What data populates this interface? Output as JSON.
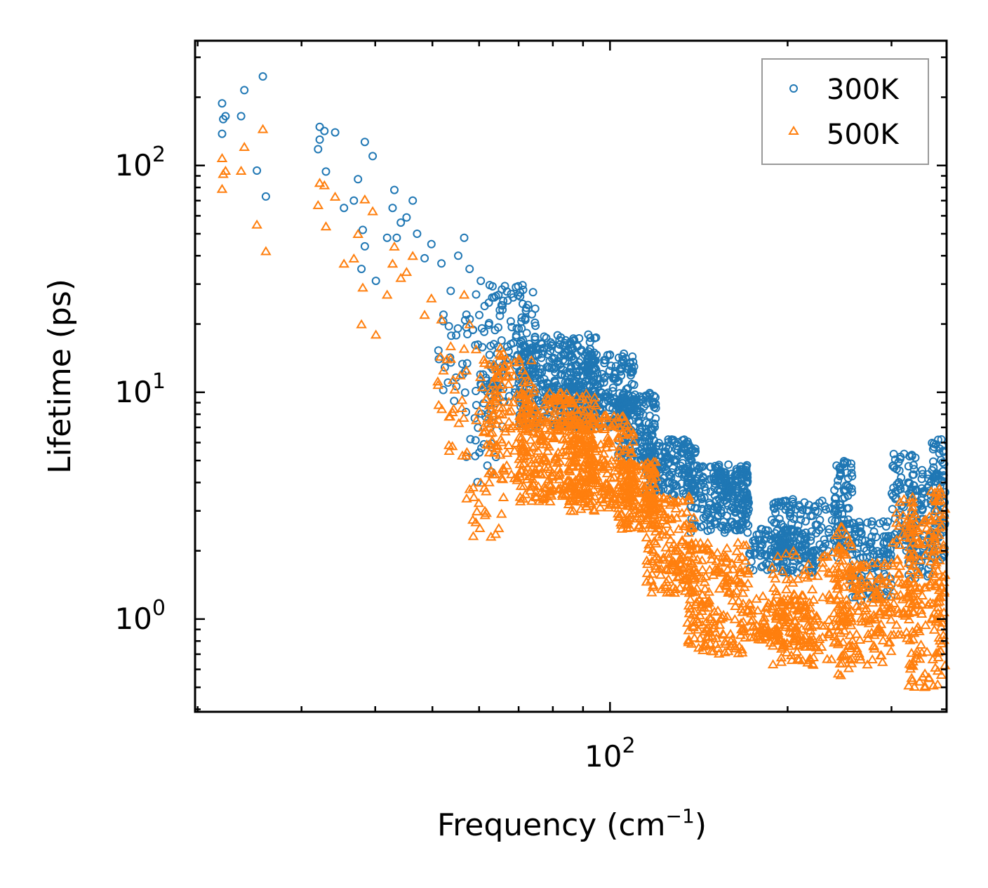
{
  "chart_data": {
    "type": "scatter",
    "xscale": "log",
    "yscale": "log",
    "xlabel": "Frequency (cm",
    "xlabel_sup": "−1",
    "xlabel_end": ")",
    "ylabel": "Lifetime (ps)",
    "xlim": [
      19.8,
      372
    ],
    "ylim": [
      0.39,
      355
    ],
    "x_ticks": [
      {
        "value": 100,
        "base": "10",
        "exp": "2"
      }
    ],
    "y_ticks": [
      {
        "value": 1,
        "base": "10",
        "exp": "0"
      },
      {
        "value": 10,
        "base": "10",
        "exp": "1"
      },
      {
        "value": 100,
        "base": "10",
        "exp": "2"
      }
    ],
    "legend_position": "top-right",
    "series": [
      {
        "name": "300K",
        "marker": "circle",
        "color": "#1f77b4",
        "points": [
          [
            22,
            188
          ],
          [
            22.1,
            160
          ],
          [
            22.3,
            165
          ],
          [
            22,
            138
          ],
          [
            23.7,
            165
          ],
          [
            24,
            215
          ],
          [
            25.2,
            95
          ],
          [
            25.8,
            247
          ],
          [
            26.1,
            73
          ],
          [
            32.2,
            148
          ],
          [
            32.8,
            142
          ],
          [
            32,
            118
          ],
          [
            32.2,
            130
          ],
          [
            33,
            94
          ],
          [
            34.2,
            140
          ],
          [
            35.4,
            65
          ],
          [
            36.8,
            70
          ],
          [
            37.4,
            87
          ],
          [
            38.4,
            127
          ],
          [
            39.6,
            110
          ],
          [
            38.1,
            52
          ],
          [
            38.4,
            44
          ],
          [
            37.9,
            35
          ],
          [
            40.1,
            31
          ],
          [
            41.9,
            48
          ],
          [
            42.8,
            65
          ],
          [
            43.1,
            78
          ],
          [
            43.5,
            48
          ],
          [
            44.2,
            56
          ],
          [
            45.2,
            59
          ],
          [
            46.3,
            70
          ],
          [
            47.1,
            50
          ],
          [
            48.5,
            39
          ],
          [
            49.8,
            45
          ],
          [
            51.8,
            37
          ],
          [
            53.7,
            28
          ],
          [
            56.6,
            48
          ],
          [
            55.3,
            40
          ],
          [
            57.8,
            35
          ],
          [
            60.4,
            31
          ],
          [
            52.2,
            22
          ],
          [
            57.1,
            22
          ],
          [
            59.3,
            27
          ],
          [
            61.3,
            24
          ]
        ],
        "bands": [
          {
            "x": [
              51,
              66
            ],
            "y": [
              8,
              22
            ],
            "n": 55
          },
          {
            "x": [
              57,
              66
            ],
            "y": [
              4,
              9
            ],
            "n": 22
          },
          {
            "x": [
              62,
              75
            ],
            "y": [
              9,
              30
            ],
            "n": 110
          },
          {
            "x": [
              70,
              95
            ],
            "y": [
              7,
              18
            ],
            "n": 340
          },
          {
            "x": [
              85,
              110
            ],
            "y": [
              7,
              15
            ],
            "n": 240
          },
          {
            "x": [
              103,
              120
            ],
            "y": [
              5,
              10
            ],
            "n": 150
          },
          {
            "x": [
              115,
              140
            ],
            "y": [
              3.5,
              6.2
            ],
            "n": 170
          },
          {
            "x": [
              135,
              172
            ],
            "y": [
              2.4,
              4.8
            ],
            "n": 210
          },
          {
            "x": [
              150,
              172
            ],
            "y": [
              3.2,
              4.5
            ],
            "n": 60
          },
          {
            "x": [
              172,
              222
            ],
            "y": [
              1.6,
              2.5
            ],
            "n": 140
          },
          {
            "x": [
              188,
              250
            ],
            "y": [
              1.8,
              3.4
            ],
            "n": 140
          },
          {
            "x": [
              240,
              258
            ],
            "y": [
              2,
              5
            ],
            "n": 70
          },
          {
            "x": [
              255,
              300
            ],
            "y": [
              1.2,
              2.7
            ],
            "n": 120
          },
          {
            "x": [
              300,
              330
            ],
            "y": [
              2,
              5.5
            ],
            "n": 70
          },
          {
            "x": [
              320,
              350
            ],
            "y": [
              1.5,
              4.6
            ],
            "n": 90
          },
          {
            "x": [
              350,
              370
            ],
            "y": [
              1.8,
              6.2
            ],
            "n": 90
          }
        ]
      },
      {
        "name": "500K",
        "marker": "triangle",
        "color": "#ff7f0e",
        "points": [
          [
            22,
            108
          ],
          [
            22.1,
            92
          ],
          [
            22.3,
            95
          ],
          [
            22,
            79
          ],
          [
            23.7,
            95
          ],
          [
            24,
            121
          ],
          [
            25.2,
            55
          ],
          [
            25.8,
            145
          ],
          [
            26.1,
            42
          ],
          [
            32.2,
            84
          ],
          [
            32.8,
            82
          ],
          [
            32,
            67
          ],
          [
            33,
            54
          ],
          [
            34.2,
            73
          ],
          [
            35.4,
            37
          ],
          [
            36.8,
            39
          ],
          [
            37.4,
            50
          ],
          [
            38.4,
            71
          ],
          [
            39.6,
            63
          ],
          [
            38.1,
            29
          ],
          [
            37.9,
            20
          ],
          [
            40.1,
            18
          ],
          [
            41.9,
            27
          ],
          [
            42.8,
            37
          ],
          [
            43.1,
            44
          ],
          [
            44.2,
            32
          ],
          [
            45.2,
            34
          ],
          [
            46.3,
            40
          ],
          [
            48.5,
            22
          ],
          [
            49.8,
            26
          ],
          [
            51.8,
            21
          ],
          [
            53.7,
            16
          ],
          [
            56.6,
            27
          ],
          [
            57.8,
            20
          ],
          [
            52.2,
            12.5
          ],
          [
            57.1,
            12.5
          ],
          [
            59.3,
            15.5
          ],
          [
            61.3,
            13.5
          ]
        ],
        "bands": [
          {
            "x": [
              51,
              66
            ],
            "y": [
              5,
              16
            ],
            "n": 55
          },
          {
            "x": [
              57,
              66
            ],
            "y": [
              2.3,
              5
            ],
            "n": 22
          },
          {
            "x": [
              62,
              75
            ],
            "y": [
              4,
              15
            ],
            "n": 110
          },
          {
            "x": [
              70,
              95
            ],
            "y": [
              3.3,
              10
            ],
            "n": 340
          },
          {
            "x": [
              85,
              110
            ],
            "y": [
              3,
              8
            ],
            "n": 240
          },
          {
            "x": [
              103,
              120
            ],
            "y": [
              2.5,
              5
            ],
            "n": 150
          },
          {
            "x": [
              115,
              140
            ],
            "y": [
              1.3,
              3.5
            ],
            "n": 170
          },
          {
            "x": [
              135,
              172
            ],
            "y": [
              0.7,
              2.2
            ],
            "n": 200
          },
          {
            "x": [
              172,
              222
            ],
            "y": [
              0.75,
              1.3
            ],
            "n": 130
          },
          {
            "x": [
              188,
              250
            ],
            "y": [
              0.62,
              2
            ],
            "n": 140
          },
          {
            "x": [
              240,
              258
            ],
            "y": [
              0.55,
              2.8
            ],
            "n": 70
          },
          {
            "x": [
              255,
              300
            ],
            "y": [
              0.62,
              1.8
            ],
            "n": 120
          },
          {
            "x": [
              300,
              330
            ],
            "y": [
              0.8,
              3.5
            ],
            "n": 70
          },
          {
            "x": [
              320,
              350
            ],
            "y": [
              0.5,
              3
            ],
            "n": 90
          },
          {
            "x": [
              350,
              370
            ],
            "y": [
              0.5,
              3.8
            ],
            "n": 90
          }
        ]
      }
    ]
  }
}
